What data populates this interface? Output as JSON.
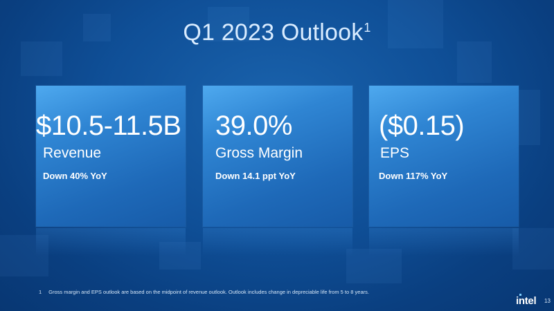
{
  "slide": {
    "title": "Q1 2023 Outlook",
    "title_footnote_ref": "1"
  },
  "cards": [
    {
      "value": "$10.5-11.5B",
      "label": "Revenue",
      "note": "Down 40% YoY"
    },
    {
      "value": "39.0%",
      "label": "Gross Margin",
      "note": "Down 14.1 ppt YoY"
    },
    {
      "value": "($0.15)",
      "label": "EPS",
      "note": "Down 117% YoY"
    }
  ],
  "footnote": {
    "number": "1",
    "text": "Gross margin and EPS outlook are based on the midpoint of revenue outlook. Outlook includes change in depreciable life from 5 to 8 years."
  },
  "branding": {
    "logo_text": "intel",
    "page_number": "13"
  },
  "colors": {
    "background": "#0f4f97",
    "card": "#2f85d3",
    "title": "#d9ecff",
    "text": "#ffffff",
    "logo_accent": "#7fd0ff"
  }
}
